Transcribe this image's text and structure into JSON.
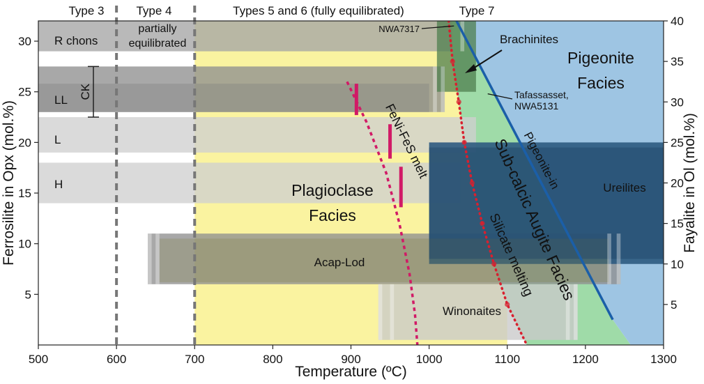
{
  "chart_data": {
    "type": "area",
    "title": "",
    "xlabel": "Temperature (ºC)",
    "ylabel_left": "Ferrosilite in Opx (mol.%)",
    "ylabel_right": "Fayalite in Ol (mol.%)",
    "xlim": [
      500,
      1300
    ],
    "ylim_left": [
      0,
      32
    ],
    "ylim_right": [
      0,
      40
    ],
    "x_ticks": [
      500,
      600,
      700,
      800,
      900,
      1000,
      1100,
      1200,
      1300
    ],
    "y_left_ticks": [
      5,
      10,
      15,
      20,
      25,
      30
    ],
    "y_right_ticks": [
      5,
      10,
      15,
      20,
      25,
      30,
      35,
      40
    ],
    "petrologic_types": [
      {
        "label": "Type 3",
        "x_from": 500,
        "x_to": 600
      },
      {
        "label": "Type 4",
        "x_from": 600,
        "x_to": 700
      },
      {
        "label": "Types 5 and 6  (fully equilibrated)",
        "x_from": 700,
        "x_to": 1020
      },
      {
        "label": "Type 7",
        "x_from": 1020,
        "x_to": 1100
      }
    ],
    "type_boundaries_x": [
      600,
      700
    ],
    "facies": [
      {
        "name": "Plagioclase Facies",
        "line1": "Plagioclase",
        "line2": "Facies",
        "color": "#faf3a0"
      },
      {
        "name": "Sub-calcic Augite Facies",
        "color": "#9fdba8"
      },
      {
        "name": "Pigeonite Facies",
        "line1": "Pigeonite",
        "line2": "Facies",
        "color": "#9ec5e3"
      }
    ],
    "meteorite_groups": [
      {
        "label": "R chons",
        "fs_from": 29,
        "fs_to": 32,
        "x_from": 500,
        "x_to": 1030,
        "color": "#a5a5a5"
      },
      {
        "label": "LL",
        "fs_from": 23,
        "fs_to": 27.5,
        "x_from": 500,
        "x_to": 1020,
        "color": "#8f8f8f"
      },
      {
        "label": "L",
        "fs_from": 19,
        "fs_to": 22.5,
        "x_from": 500,
        "x_to": 1060,
        "color": "#cfcfcf"
      },
      {
        "label": "H",
        "fs_from": 14,
        "fs_to": 18,
        "x_from": 500,
        "x_to": 1040,
        "color": "#cfcfcf"
      },
      {
        "label": "Acap-Lod",
        "fs_from": 6,
        "fs_to": 11,
        "x_from": 640,
        "x_to": 1245,
        "color": "#8f8f8f"
      },
      {
        "label": "Winonaites",
        "fs_from": 0.5,
        "fs_to": 6,
        "x_from": 935,
        "x_to": 1190,
        "color": "#c9c9c9"
      },
      {
        "label": "Ureilites",
        "fs_from": 8,
        "fs_to": 20,
        "x_from": 1000,
        "x_to": 1300,
        "color": "#2c5a80"
      },
      {
        "label": "Brachinites",
        "fs_from": 25,
        "fs_to": 32,
        "x_from": 1010,
        "x_to": 1060,
        "color": "#4f7f4f"
      }
    ],
    "ck_range": {
      "label": "CK",
      "fs_from": 22.5,
      "fs_to": 27.5
    },
    "annotations": [
      {
        "label": "partially equilibrated",
        "line1": "partially",
        "line2": "equilibrated"
      },
      {
        "label": "NWA7317",
        "x": 1030,
        "fs": 31.5
      },
      {
        "label": "Tafassasset, NWA5131",
        "line1": "Tafassasset,",
        "line2": "NWA5131",
        "x": 1075,
        "fs": 24.8
      },
      {
        "label": "Pigeonite-in"
      },
      {
        "label": "Silicate melting"
      },
      {
        "label": "FeNi-FeS melt"
      },
      {
        "label": "Sub-calcic Augite Facies"
      }
    ],
    "pigeonite_in_line": {
      "x": [
        1035,
        1235
      ],
      "fs": [
        32,
        2.5
      ],
      "color": "#1b5fa8"
    },
    "silicate_melting_curve": {
      "x": [
        1025,
        1030,
        1038,
        1045,
        1055,
        1068,
        1083,
        1100,
        1125
      ],
      "fs": [
        32,
        28,
        24,
        20,
        16,
        12,
        8,
        4,
        0
      ],
      "color": "#d8202f"
    },
    "feni_fes_melt_curve": {
      "x": [
        895,
        920,
        945,
        962,
        975,
        982,
        985
      ],
      "fs": [
        26,
        22,
        17,
        12,
        7,
        3,
        0
      ],
      "color": "#d11a66"
    },
    "feni_fes_bars": [
      {
        "x": 907,
        "fs_from": 22.7,
        "fs_to": 25.8
      },
      {
        "x": 950,
        "fs_from": 18.4,
        "fs_to": 21.8
      },
      {
        "x": 964,
        "fs_from": 13.6,
        "fs_to": 17.6
      }
    ]
  }
}
